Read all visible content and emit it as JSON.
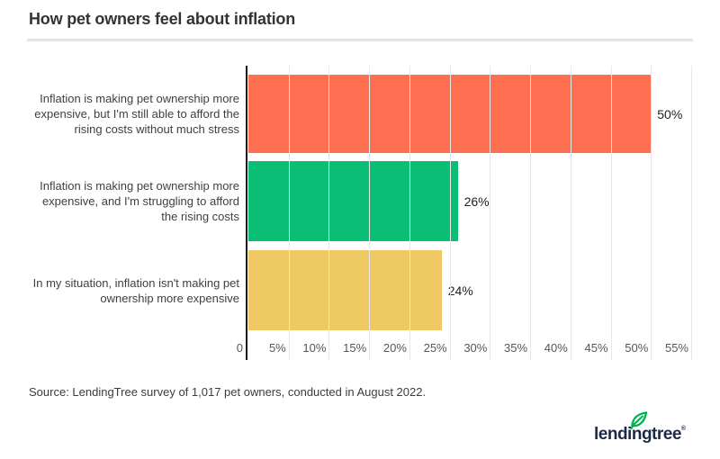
{
  "title": "How pet owners feel about inflation",
  "source": "Source: LendingTree survey of 1,017 pet owners, conducted in August 2022.",
  "logo": {
    "text": "lendingtree",
    "registered": "®",
    "leaf_icon": "leaf-icon",
    "text_color": "#1d2a47",
    "leaf_color": "#00b14f"
  },
  "colors": {
    "bar_orange": "#ff7052",
    "bar_green": "#0bbe76",
    "bar_yellow": "#efc964",
    "axis": "#1a1a1a",
    "gridline": "#e8e8e8",
    "divider": "#e4e4e4"
  },
  "chart_data": {
    "type": "bar",
    "orientation": "horizontal",
    "title": "How pet owners feel about inflation",
    "categories": [
      "Inflation is making pet ownership more expensive, but I'm still able to afford the rising costs without much stress",
      "Inflation is making pet ownership more expensive, and I'm struggling to afford the rising costs",
      "In my situation, inflation isn't making pet ownership more expensive"
    ],
    "values": [
      50,
      26,
      24
    ],
    "value_labels": [
      "50%",
      "26%",
      "24%"
    ],
    "bar_colors": [
      "#ff7052",
      "#0bbe76",
      "#efc964"
    ],
    "x_ticks": [
      "0",
      "5%",
      "10%",
      "15%",
      "20%",
      "25%",
      "30%",
      "35%",
      "40%",
      "45%",
      "50%",
      "55%"
    ],
    "x_max": 55,
    "xlabel": "",
    "ylabel": "",
    "grid": true,
    "legend": "none"
  }
}
